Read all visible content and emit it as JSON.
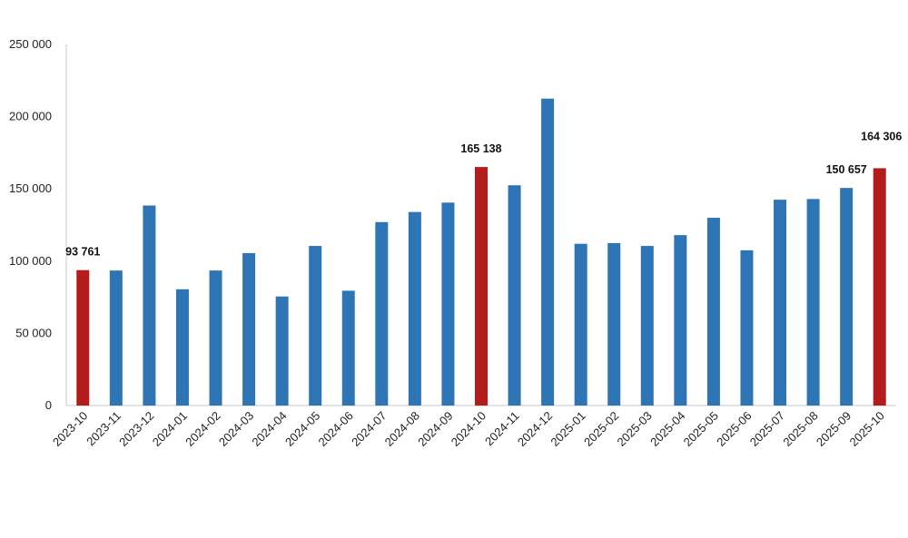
{
  "chart_data": {
    "type": "bar",
    "categories": [
      "2023-10",
      "2023-11",
      "2023-12",
      "2024-01",
      "2024-02",
      "2024-03",
      "2024-04",
      "2024-05",
      "2024-06",
      "2024-07",
      "2024-08",
      "2024-09",
      "2024-10",
      "2024-11",
      "2024-12",
      "2025-01",
      "2025-02",
      "2025-03",
      "2025-04",
      "2025-05",
      "2025-06",
      "2025-07",
      "2025-08",
      "2025-09",
      "2025-10"
    ],
    "values": [
      93761,
      93500,
      138500,
      80500,
      93500,
      105500,
      75500,
      110500,
      79500,
      127000,
      134000,
      140500,
      165138,
      152500,
      212500,
      112000,
      112500,
      110500,
      118000,
      130000,
      107500,
      142500,
      143000,
      150657,
      164306
    ],
    "highlighted": [
      "2023-10",
      "2024-10",
      "2025-10"
    ],
    "data_labels": [
      {
        "category": "2023-10",
        "text": "93 761"
      },
      {
        "category": "2024-10",
        "text": "165 138"
      },
      {
        "category": "2025-09",
        "text": "150 657"
      },
      {
        "category": "2025-10",
        "text": "164 306"
      }
    ],
    "yticks": [
      "0",
      "50 000",
      "100 000",
      "150 000",
      "200 000",
      "250 000"
    ],
    "ylim": [
      0,
      250000
    ],
    "grid": false,
    "title": "",
    "xlabel": "",
    "ylabel": "",
    "colors": {
      "bar": "#2e75b6",
      "highlight": "#b41b1b",
      "axis": "#c8c8c8"
    }
  }
}
